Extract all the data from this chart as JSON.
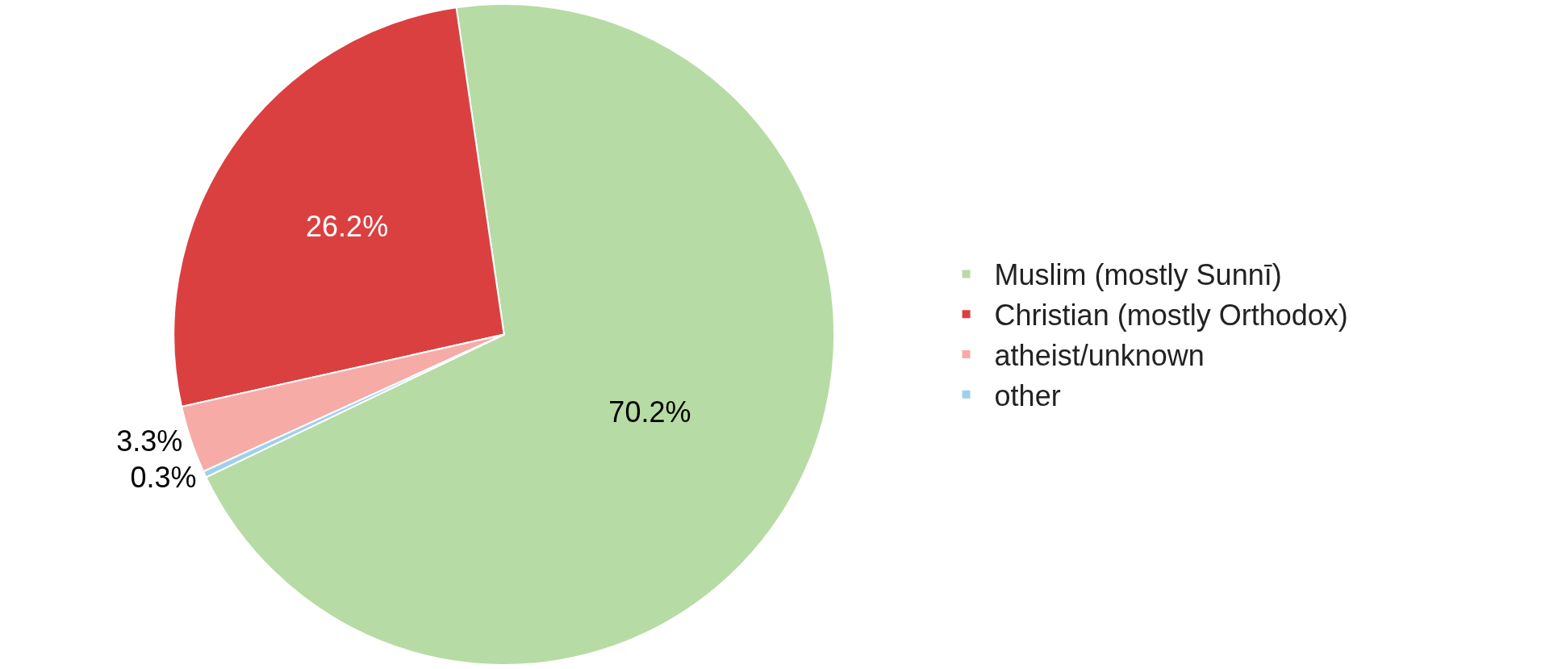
{
  "chart_data": {
    "type": "pie",
    "categories": [
      "Muslim (mostly Sunnī)",
      "Christian (mostly Orthodox)",
      "atheist/unknown",
      "other"
    ],
    "values": [
      70.2,
      26.2,
      3.3,
      0.3
    ],
    "colors": [
      "#b7dba4",
      "#db4040",
      "#f6aba6",
      "#a0cfec"
    ],
    "value_labels": [
      "70.2%",
      "26.2%",
      "3.3%",
      "0.3%"
    ],
    "legend": "right"
  }
}
